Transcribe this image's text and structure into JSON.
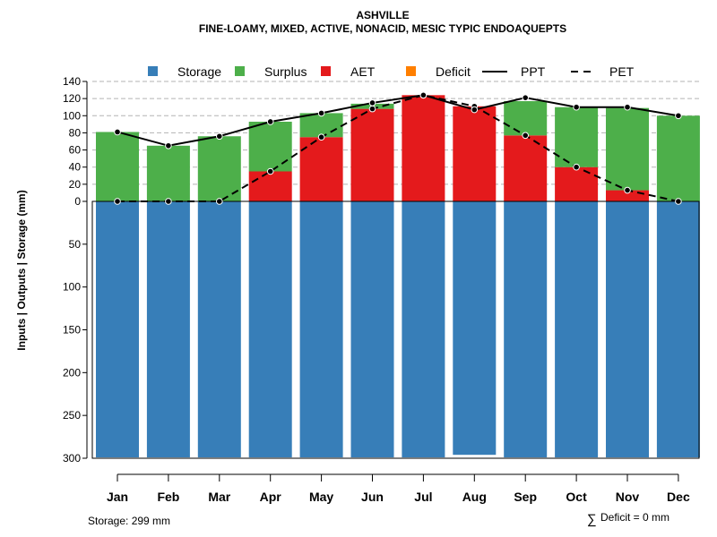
{
  "chart_data": {
    "type": "bar",
    "title": "ASHVILLE",
    "subtitle": "FINE-LOAMY, MIXED, ACTIVE, NONACID, MESIC TYPIC ENDOAQUEPTS",
    "ylabel": "Inputs | Outputs | Storage     (mm)",
    "categories": [
      "Jan",
      "Feb",
      "Mar",
      "Apr",
      "May",
      "Jun",
      "Jul",
      "Aug",
      "Sep",
      "Oct",
      "Nov",
      "Dec"
    ],
    "upper_ylim": [
      0,
      140
    ],
    "upper_ticks": [
      "0",
      "20",
      "40",
      "60",
      "80",
      "100",
      "120",
      "140"
    ],
    "lower_ylim": [
      0,
      300
    ],
    "lower_ticks": [
      "0",
      "50",
      "100",
      "150",
      "200",
      "250",
      "300"
    ],
    "grid": "dashed horizontal lines, upper panel",
    "legend": {
      "placement": "top",
      "entries": [
        {
          "label": "Storage",
          "kind": "square",
          "color": "#377EB8"
        },
        {
          "label": "Surplus",
          "kind": "square",
          "color": "#4DAF4A"
        },
        {
          "label": "AET",
          "kind": "square",
          "color": "#E41A1C"
        },
        {
          "label": "Deficit",
          "kind": "square",
          "color": "#FF7F00"
        },
        {
          "label": "PPT",
          "kind": "solid-line",
          "color": "#000000"
        },
        {
          "label": "PET",
          "kind": "dashed-line",
          "color": "#000000"
        }
      ]
    },
    "series": [
      {
        "name": "Storage",
        "color": "#377EB8",
        "values": [
          299,
          299,
          299,
          299,
          299,
          299,
          299,
          296,
          299,
          299,
          299,
          299
        ]
      },
      {
        "name": "Surplus",
        "color": "#4DAF4A",
        "values": [
          81,
          65,
          76,
          58,
          28,
          6,
          0,
          0,
          40,
          70,
          96,
          100
        ]
      },
      {
        "name": "AET",
        "color": "#E41A1C",
        "values": [
          0,
          0,
          0,
          35,
          75,
          108,
          124,
          111,
          77,
          40,
          13,
          0
        ]
      },
      {
        "name": "Deficit",
        "color": "#FF7F00",
        "values": [
          0,
          0,
          0,
          0,
          0,
          0,
          0,
          0,
          0,
          0,
          0,
          0
        ]
      },
      {
        "name": "PPT",
        "color": "#000000",
        "values": [
          81,
          65,
          76,
          93,
          103,
          115,
          124,
          107,
          121,
          110,
          110,
          100
        ]
      },
      {
        "name": "PET",
        "color": "#000000",
        "values": [
          0,
          0,
          0,
          35,
          75,
          108,
          124,
          111,
          77,
          40,
          13,
          0
        ]
      }
    ],
    "annotations": {
      "storage_note": "Storage: 299 mm",
      "deficit_symbol": "∑",
      "deficit_note": "Deficit = 0 mm"
    }
  }
}
